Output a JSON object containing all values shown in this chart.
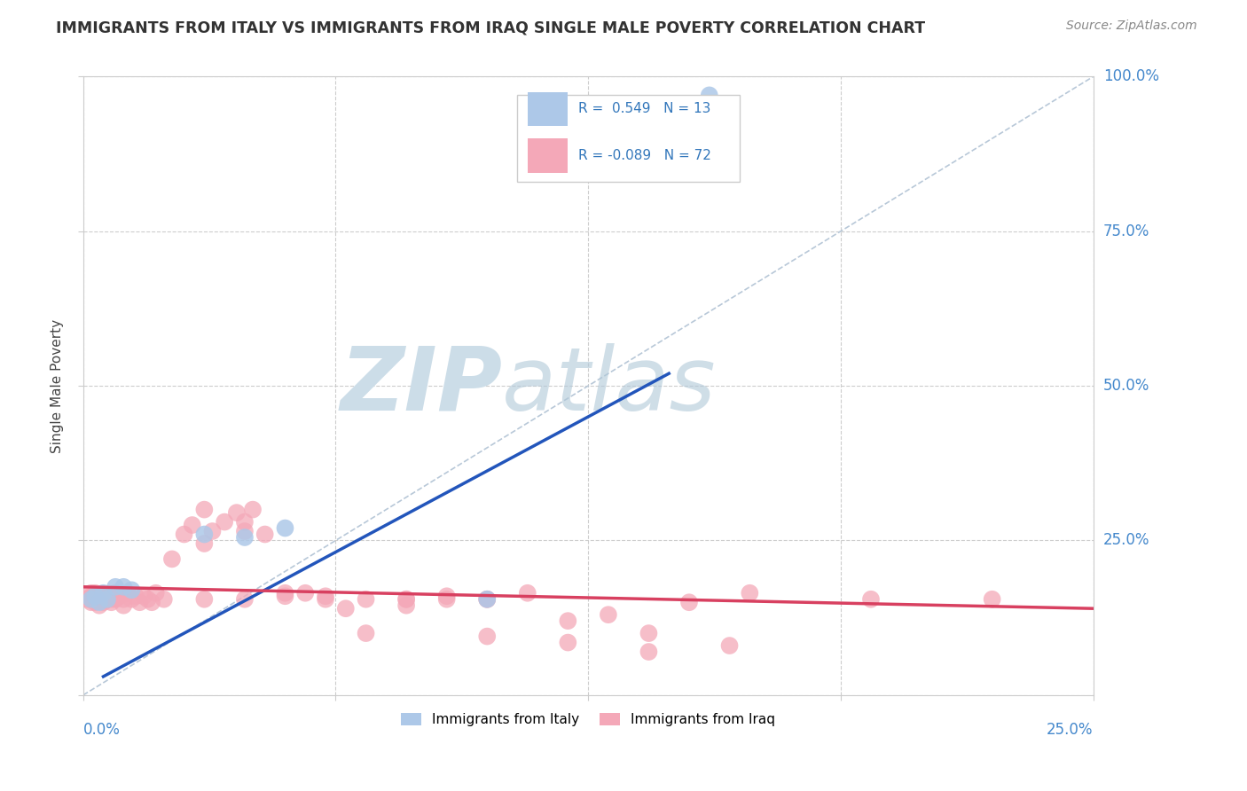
{
  "title": "IMMIGRANTS FROM ITALY VS IMMIGRANTS FROM IRAQ SINGLE MALE POVERTY CORRELATION CHART",
  "source": "Source: ZipAtlas.com",
  "ylabel": "Single Male Poverty",
  "yticks": [
    0.0,
    0.25,
    0.5,
    0.75,
    1.0
  ],
  "ytick_labels": [
    "",
    "25.0%",
    "50.0%",
    "75.0%",
    "100.0%"
  ],
  "xlim": [
    0.0,
    0.25
  ],
  "ylim": [
    0.0,
    1.0
  ],
  "italy_R": 0.549,
  "italy_N": 13,
  "iraq_R": -0.089,
  "iraq_N": 72,
  "italy_color": "#adc8e8",
  "iraq_color": "#f4a8b8",
  "italy_line_color": "#2255bb",
  "iraq_line_color": "#d84060",
  "watermark_zip": "ZIP",
  "watermark_atlas": "atlas",
  "background_color": "#ffffff",
  "italy_scatter_x": [
    0.002,
    0.003,
    0.004,
    0.005,
    0.006,
    0.008,
    0.01,
    0.012,
    0.03,
    0.04,
    0.05,
    0.1,
    0.155
  ],
  "italy_scatter_y": [
    0.155,
    0.16,
    0.15,
    0.165,
    0.155,
    0.175,
    0.175,
    0.17,
    0.26,
    0.255,
    0.27,
    0.155,
    0.97
  ],
  "iraq_scatter_x": [
    0.001,
    0.002,
    0.002,
    0.002,
    0.003,
    0.003,
    0.003,
    0.004,
    0.004,
    0.004,
    0.005,
    0.005,
    0.005,
    0.006,
    0.006,
    0.007,
    0.007,
    0.008,
    0.008,
    0.009,
    0.01,
    0.01,
    0.011,
    0.012,
    0.013,
    0.014,
    0.015,
    0.016,
    0.017,
    0.018,
    0.02,
    0.022,
    0.025,
    0.027,
    0.03,
    0.032,
    0.035,
    0.038,
    0.04,
    0.042,
    0.045,
    0.05,
    0.055,
    0.06,
    0.065,
    0.07,
    0.08,
    0.09,
    0.1,
    0.11,
    0.12,
    0.13,
    0.14,
    0.15,
    0.165,
    0.195,
    0.225,
    0.03,
    0.04,
    0.05,
    0.06,
    0.07,
    0.08,
    0.09,
    0.1,
    0.12,
    0.14,
    0.16,
    0.03,
    0.04,
    0.08,
    0.1
  ],
  "iraq_scatter_y": [
    0.155,
    0.16,
    0.15,
    0.165,
    0.155,
    0.15,
    0.165,
    0.16,
    0.155,
    0.145,
    0.155,
    0.15,
    0.16,
    0.155,
    0.16,
    0.15,
    0.155,
    0.165,
    0.155,
    0.16,
    0.145,
    0.155,
    0.165,
    0.155,
    0.16,
    0.15,
    0.16,
    0.155,
    0.15,
    0.165,
    0.155,
    0.22,
    0.26,
    0.275,
    0.245,
    0.265,
    0.28,
    0.295,
    0.265,
    0.3,
    0.26,
    0.165,
    0.165,
    0.16,
    0.14,
    0.155,
    0.155,
    0.16,
    0.155,
    0.165,
    0.12,
    0.13,
    0.1,
    0.15,
    0.165,
    0.155,
    0.155,
    0.3,
    0.28,
    0.16,
    0.155,
    0.1,
    0.145,
    0.155,
    0.095,
    0.085,
    0.07,
    0.08,
    0.155,
    0.155,
    0.155,
    0.155
  ],
  "italy_line_x": [
    0.005,
    0.145
  ],
  "italy_line_y": [
    0.03,
    0.52
  ],
  "iraq_line_x": [
    0.0,
    0.25
  ],
  "iraq_line_y": [
    0.175,
    0.14
  ]
}
